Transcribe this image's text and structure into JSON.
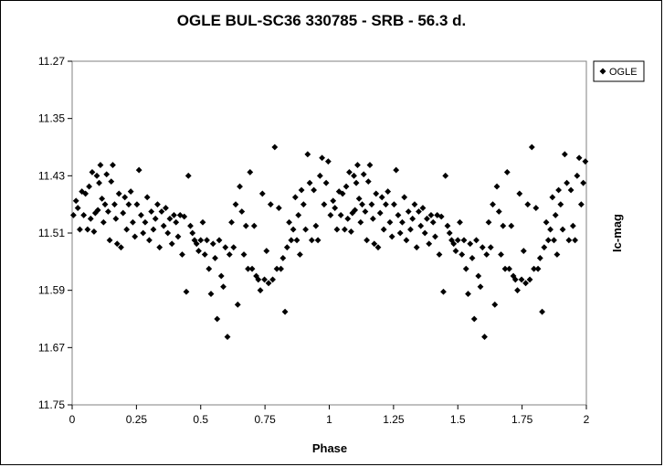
{
  "chart_data": {
    "type": "scatter",
    "title": "OGLE BUL-SC36  330785 - SRB - 56.3 d.",
    "xlabel": "Phase",
    "ylabel": "Ic-mag",
    "xlim": [
      0,
      2
    ],
    "ylim": [
      11.27,
      11.75
    ],
    "y_inverted": true,
    "xticks": [
      "0",
      "0.25",
      "0.5",
      "0.75",
      "1",
      "1.25",
      "1.5",
      "1.75",
      "2"
    ],
    "yticks": [
      "11.27",
      "11.35",
      "11.43",
      "11.51",
      "11.59",
      "11.67",
      "11.75"
    ],
    "grid": false,
    "legend_position": "top-right",
    "marker": "diamond",
    "marker_color": "#000000",
    "series": [
      {
        "name": "OGLE",
        "points": [
          [
            0.005,
            11.485
          ],
          [
            0.015,
            11.465
          ],
          [
            0.022,
            11.475
          ],
          [
            0.03,
            11.505
          ],
          [
            0.038,
            11.452
          ],
          [
            0.045,
            11.485
          ],
          [
            0.052,
            11.455
          ],
          [
            0.06,
            11.505
          ],
          [
            0.066,
            11.445
          ],
          [
            0.072,
            11.49
          ],
          [
            0.078,
            11.425
          ],
          [
            0.085,
            11.508
          ],
          [
            0.09,
            11.482
          ],
          [
            0.096,
            11.43
          ],
          [
            0.1,
            11.478
          ],
          [
            0.105,
            11.44
          ],
          [
            0.11,
            11.415
          ],
          [
            0.116,
            11.462
          ],
          [
            0.122,
            11.495
          ],
          [
            0.128,
            11.47
          ],
          [
            0.134,
            11.428
          ],
          [
            0.14,
            11.48
          ],
          [
            0.146,
            11.52
          ],
          [
            0.152,
            11.438
          ],
          [
            0.158,
            11.415
          ],
          [
            0.165,
            11.47
          ],
          [
            0.17,
            11.49
          ],
          [
            0.175,
            11.525
          ],
          [
            0.182,
            11.455
          ],
          [
            0.19,
            11.53
          ],
          [
            0.198,
            11.482
          ],
          [
            0.205,
            11.46
          ],
          [
            0.212,
            11.505
          ],
          [
            0.22,
            11.47
          ],
          [
            0.228,
            11.452
          ],
          [
            0.236,
            11.495
          ],
          [
            0.244,
            11.515
          ],
          [
            0.252,
            11.47
          ],
          [
            0.26,
            11.422
          ],
          [
            0.268,
            11.485
          ],
          [
            0.276,
            11.51
          ],
          [
            0.284,
            11.495
          ],
          [
            0.292,
            11.46
          ],
          [
            0.3,
            11.52
          ],
          [
            0.308,
            11.48
          ],
          [
            0.316,
            11.505
          ],
          [
            0.324,
            11.49
          ],
          [
            0.332,
            11.47
          ],
          [
            0.34,
            11.53
          ],
          [
            0.348,
            11.48
          ],
          [
            0.356,
            11.5
          ],
          [
            0.364,
            11.475
          ],
          [
            0.372,
            11.51
          ],
          [
            0.38,
            11.49
          ],
          [
            0.388,
            11.525
          ],
          [
            0.396,
            11.485
          ],
          [
            0.404,
            11.495
          ],
          [
            0.412,
            11.515
          ],
          [
            0.42,
            11.485
          ],
          [
            0.428,
            11.54
          ],
          [
            0.436,
            11.487
          ],
          [
            0.444,
            11.592
          ],
          [
            0.452,
            11.43
          ],
          [
            0.46,
            11.5
          ],
          [
            0.468,
            11.51
          ],
          [
            0.476,
            11.52
          ],
          [
            0.484,
            11.525
          ],
          [
            0.492,
            11.535
          ],
          [
            0.5,
            11.52
          ],
          [
            0.508,
            11.495
          ],
          [
            0.516,
            11.54
          ],
          [
            0.524,
            11.52
          ],
          [
            0.532,
            11.56
          ],
          [
            0.54,
            11.595
          ],
          [
            0.548,
            11.525
          ],
          [
            0.556,
            11.545
          ],
          [
            0.564,
            11.63
          ],
          [
            0.572,
            11.52
          ],
          [
            0.58,
            11.57
          ],
          [
            0.588,
            11.585
          ],
          [
            0.596,
            11.53
          ],
          [
            0.604,
            11.655
          ],
          [
            0.612,
            11.54
          ],
          [
            0.62,
            11.495
          ],
          [
            0.628,
            11.53
          ],
          [
            0.636,
            11.47
          ],
          [
            0.644,
            11.61
          ],
          [
            0.652,
            11.445
          ],
          [
            0.66,
            11.48
          ],
          [
            0.668,
            11.54
          ],
          [
            0.676,
            11.5
          ],
          [
            0.684,
            11.56
          ],
          [
            0.692,
            11.425
          ],
          [
            0.7,
            11.56
          ],
          [
            0.708,
            11.5
          ],
          [
            0.716,
            11.57
          ],
          [
            0.724,
            11.575
          ],
          [
            0.732,
            11.59
          ],
          [
            0.74,
            11.455
          ],
          [
            0.748,
            11.575
          ],
          [
            0.756,
            11.535
          ],
          [
            0.764,
            11.58
          ],
          [
            0.772,
            11.47
          ],
          [
            0.78,
            11.575
          ],
          [
            0.788,
            11.39
          ],
          [
            0.796,
            11.56
          ],
          [
            0.804,
            11.475
          ],
          [
            0.812,
            11.56
          ],
          [
            0.82,
            11.545
          ],
          [
            0.828,
            11.62
          ],
          [
            0.836,
            11.53
          ],
          [
            0.844,
            11.495
          ],
          [
            0.852,
            11.52
          ],
          [
            0.86,
            11.505
          ],
          [
            0.868,
            11.46
          ],
          [
            0.874,
            11.52
          ],
          [
            0.88,
            11.485
          ],
          [
            0.886,
            11.54
          ],
          [
            0.892,
            11.45
          ],
          [
            0.9,
            11.47
          ],
          [
            0.908,
            11.505
          ],
          [
            0.916,
            11.4
          ],
          [
            0.924,
            11.44
          ],
          [
            0.932,
            11.52
          ],
          [
            0.94,
            11.45
          ],
          [
            0.948,
            11.5
          ],
          [
            0.956,
            11.52
          ],
          [
            0.964,
            11.43
          ],
          [
            0.972,
            11.405
          ],
          [
            0.98,
            11.47
          ],
          [
            0.988,
            11.44
          ],
          [
            0.996,
            11.41
          ],
          [
            1.005,
            11.485
          ],
          [
            1.015,
            11.465
          ],
          [
            1.022,
            11.475
          ],
          [
            1.03,
            11.505
          ],
          [
            1.038,
            11.452
          ],
          [
            1.045,
            11.485
          ],
          [
            1.052,
            11.455
          ],
          [
            1.06,
            11.505
          ],
          [
            1.066,
            11.445
          ],
          [
            1.072,
            11.49
          ],
          [
            1.078,
            11.425
          ],
          [
            1.085,
            11.508
          ],
          [
            1.09,
            11.482
          ],
          [
            1.096,
            11.43
          ],
          [
            1.1,
            11.478
          ],
          [
            1.105,
            11.44
          ],
          [
            1.11,
            11.415
          ],
          [
            1.116,
            11.462
          ],
          [
            1.122,
            11.495
          ],
          [
            1.128,
            11.47
          ],
          [
            1.134,
            11.428
          ],
          [
            1.14,
            11.48
          ],
          [
            1.146,
            11.52
          ],
          [
            1.152,
            11.438
          ],
          [
            1.158,
            11.415
          ],
          [
            1.165,
            11.47
          ],
          [
            1.17,
            11.49
          ],
          [
            1.175,
            11.525
          ],
          [
            1.182,
            11.455
          ],
          [
            1.19,
            11.53
          ],
          [
            1.198,
            11.482
          ],
          [
            1.205,
            11.46
          ],
          [
            1.212,
            11.505
          ],
          [
            1.22,
            11.47
          ],
          [
            1.228,
            11.452
          ],
          [
            1.236,
            11.495
          ],
          [
            1.244,
            11.515
          ],
          [
            1.252,
            11.47
          ],
          [
            1.26,
            11.422
          ],
          [
            1.268,
            11.485
          ],
          [
            1.276,
            11.51
          ],
          [
            1.284,
            11.495
          ],
          [
            1.292,
            11.46
          ],
          [
            1.3,
            11.52
          ],
          [
            1.308,
            11.48
          ],
          [
            1.316,
            11.505
          ],
          [
            1.324,
            11.49
          ],
          [
            1.332,
            11.47
          ],
          [
            1.34,
            11.53
          ],
          [
            1.348,
            11.48
          ],
          [
            1.356,
            11.5
          ],
          [
            1.364,
            11.475
          ],
          [
            1.372,
            11.51
          ],
          [
            1.38,
            11.49
          ],
          [
            1.388,
            11.525
          ],
          [
            1.396,
            11.485
          ],
          [
            1.404,
            11.495
          ],
          [
            1.412,
            11.515
          ],
          [
            1.42,
            11.485
          ],
          [
            1.428,
            11.54
          ],
          [
            1.436,
            11.487
          ],
          [
            1.444,
            11.592
          ],
          [
            1.452,
            11.43
          ],
          [
            1.46,
            11.5
          ],
          [
            1.468,
            11.51
          ],
          [
            1.476,
            11.52
          ],
          [
            1.484,
            11.525
          ],
          [
            1.492,
            11.535
          ],
          [
            1.5,
            11.52
          ],
          [
            1.508,
            11.495
          ],
          [
            1.516,
            11.54
          ],
          [
            1.524,
            11.52
          ],
          [
            1.532,
            11.56
          ],
          [
            1.54,
            11.595
          ],
          [
            1.548,
            11.525
          ],
          [
            1.556,
            11.545
          ],
          [
            1.564,
            11.63
          ],
          [
            1.572,
            11.52
          ],
          [
            1.58,
            11.57
          ],
          [
            1.588,
            11.585
          ],
          [
            1.596,
            11.53
          ],
          [
            1.604,
            11.655
          ],
          [
            1.612,
            11.54
          ],
          [
            1.62,
            11.495
          ],
          [
            1.628,
            11.53
          ],
          [
            1.636,
            11.47
          ],
          [
            1.644,
            11.61
          ],
          [
            1.652,
            11.445
          ],
          [
            1.66,
            11.48
          ],
          [
            1.668,
            11.54
          ],
          [
            1.676,
            11.5
          ],
          [
            1.684,
            11.56
          ],
          [
            1.692,
            11.425
          ],
          [
            1.7,
            11.56
          ],
          [
            1.708,
            11.5
          ],
          [
            1.716,
            11.57
          ],
          [
            1.724,
            11.575
          ],
          [
            1.732,
            11.59
          ],
          [
            1.74,
            11.455
          ],
          [
            1.748,
            11.575
          ],
          [
            1.756,
            11.535
          ],
          [
            1.764,
            11.58
          ],
          [
            1.772,
            11.47
          ],
          [
            1.78,
            11.575
          ],
          [
            1.788,
            11.39
          ],
          [
            1.796,
            11.56
          ],
          [
            1.804,
            11.475
          ],
          [
            1.812,
            11.56
          ],
          [
            1.82,
            11.545
          ],
          [
            1.828,
            11.62
          ],
          [
            1.836,
            11.53
          ],
          [
            1.844,
            11.495
          ],
          [
            1.852,
            11.52
          ],
          [
            1.86,
            11.505
          ],
          [
            1.868,
            11.46
          ],
          [
            1.874,
            11.52
          ],
          [
            1.88,
            11.485
          ],
          [
            1.886,
            11.54
          ],
          [
            1.892,
            11.45
          ],
          [
            1.9,
            11.47
          ],
          [
            1.908,
            11.505
          ],
          [
            1.916,
            11.4
          ],
          [
            1.924,
            11.44
          ],
          [
            1.932,
            11.52
          ],
          [
            1.94,
            11.45
          ],
          [
            1.948,
            11.5
          ],
          [
            1.956,
            11.52
          ],
          [
            1.964,
            11.43
          ],
          [
            1.972,
            11.405
          ],
          [
            1.98,
            11.47
          ],
          [
            1.988,
            11.44
          ],
          [
            1.996,
            11.41
          ]
        ]
      }
    ]
  }
}
